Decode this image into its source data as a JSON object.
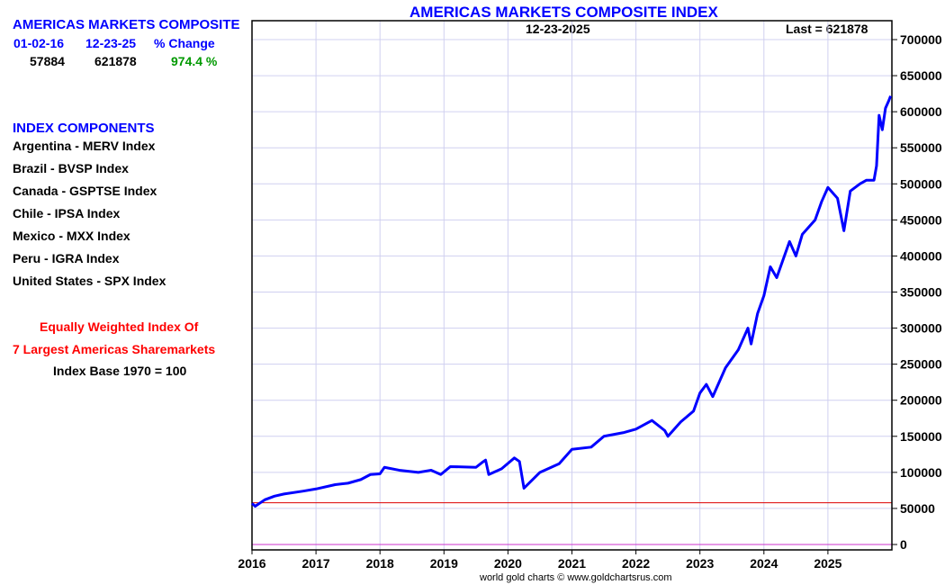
{
  "summary": {
    "title": "AMERICAS MARKETS COMPOSITE",
    "start_date": "01-02-16",
    "end_date": "12-23-25",
    "change_label": "% Change",
    "start_value": "57884",
    "end_value": "621878",
    "change_value": "974.4 %"
  },
  "components": {
    "heading": "INDEX COMPONENTS",
    "items": [
      "Argentina - MERV Index",
      "Brazil - BVSP Index",
      "Canada - GSPTSE Index",
      "Chile - IPSA Index",
      "Mexico - MXX Index",
      "Peru - IGRA Index",
      "United States - SPX Index"
    ]
  },
  "notes": {
    "line1": "Equally Weighted Index Of",
    "line2": "7 Largest Americas Sharemarkets",
    "line3": "Index Base 1970 = 100"
  },
  "credit": "world gold charts © www.goldchartsrus.com",
  "colors": {
    "series": "#0000ff",
    "grid": "#d0d0f0",
    "baseline": "#dd0000",
    "zero": "#cc33cc"
  },
  "chart_data": {
    "type": "line",
    "title": "AMERICAS MARKETS COMPOSITE INDEX",
    "date_label": "12-23-2025",
    "last_label": "Last = 621878",
    "xlim": [
      2016,
      2026
    ],
    "ylim": [
      0,
      700000
    ],
    "x_ticks": [
      "2016",
      "2017",
      "2018",
      "2019",
      "2020",
      "2021",
      "2022",
      "2023",
      "2024",
      "2025"
    ],
    "y_ticks": [
      "0",
      "50000",
      "100000",
      "150000",
      "200000",
      "250000",
      "300000",
      "350000",
      "400000",
      "450000",
      "500000",
      "550000",
      "600000",
      "650000",
      "700000"
    ],
    "baseline_value": 57884,
    "grid": true,
    "series": [
      {
        "name": "Americas Markets Composite",
        "points": [
          [
            2016.0,
            57000
          ],
          [
            2016.05,
            53000
          ],
          [
            2016.2,
            62000
          ],
          [
            2016.35,
            67000
          ],
          [
            2016.5,
            70000
          ],
          [
            2016.8,
            74000
          ],
          [
            2017.0,
            77000
          ],
          [
            2017.3,
            83000
          ],
          [
            2017.5,
            85000
          ],
          [
            2017.7,
            90000
          ],
          [
            2017.85,
            97000
          ],
          [
            2018.0,
            98000
          ],
          [
            2018.07,
            107000
          ],
          [
            2018.3,
            103000
          ],
          [
            2018.6,
            100000
          ],
          [
            2018.8,
            103000
          ],
          [
            2018.95,
            97000
          ],
          [
            2019.1,
            108000
          ],
          [
            2019.5,
            107000
          ],
          [
            2019.6,
            114000
          ],
          [
            2019.65,
            117000
          ],
          [
            2019.7,
            97000
          ],
          [
            2019.9,
            105000
          ],
          [
            2020.1,
            120000
          ],
          [
            2020.18,
            115000
          ],
          [
            2020.25,
            78000
          ],
          [
            2020.5,
            100000
          ],
          [
            2020.8,
            112000
          ],
          [
            2021.0,
            132000
          ],
          [
            2021.3,
            135000
          ],
          [
            2021.5,
            150000
          ],
          [
            2021.8,
            155000
          ],
          [
            2022.0,
            160000
          ],
          [
            2022.25,
            172000
          ],
          [
            2022.45,
            158000
          ],
          [
            2022.5,
            150000
          ],
          [
            2022.7,
            170000
          ],
          [
            2022.9,
            185000
          ],
          [
            2023.0,
            210000
          ],
          [
            2023.1,
            222000
          ],
          [
            2023.2,
            205000
          ],
          [
            2023.4,
            245000
          ],
          [
            2023.6,
            270000
          ],
          [
            2023.7,
            290000
          ],
          [
            2023.75,
            300000
          ],
          [
            2023.8,
            278000
          ],
          [
            2023.9,
            320000
          ],
          [
            2024.0,
            345000
          ],
          [
            2024.1,
            385000
          ],
          [
            2024.2,
            370000
          ],
          [
            2024.3,
            395000
          ],
          [
            2024.4,
            420000
          ],
          [
            2024.5,
            400000
          ],
          [
            2024.6,
            430000
          ],
          [
            2024.8,
            450000
          ],
          [
            2024.9,
            475000
          ],
          [
            2025.0,
            495000
          ],
          [
            2025.15,
            480000
          ],
          [
            2025.25,
            435000
          ],
          [
            2025.35,
            490000
          ],
          [
            2025.5,
            500000
          ],
          [
            2025.6,
            505000
          ],
          [
            2025.72,
            505000
          ],
          [
            2025.76,
            525000
          ],
          [
            2025.8,
            595000
          ],
          [
            2025.85,
            575000
          ],
          [
            2025.9,
            605000
          ],
          [
            2025.95,
            615000
          ],
          [
            2025.98,
            621878
          ]
        ]
      }
    ]
  }
}
